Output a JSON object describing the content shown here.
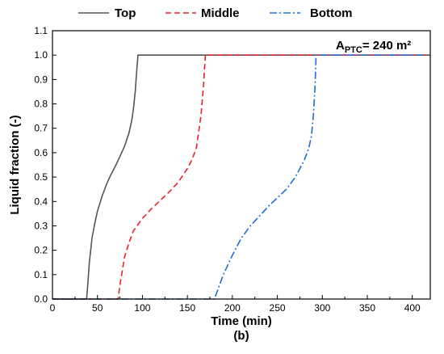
{
  "chart_data": {
    "type": "line",
    "xlabel": "Time (min)",
    "ylabel": "Liquid fraction (-)",
    "caption": "(b)",
    "xlim": [
      0,
      420
    ],
    "ylim": [
      0,
      1.1
    ],
    "xticks": [
      0,
      50,
      100,
      150,
      200,
      250,
      300,
      350,
      400
    ],
    "yticks": [
      0.0,
      0.1,
      0.2,
      0.3,
      0.4,
      0.5,
      0.6,
      0.7,
      0.8,
      0.9,
      1.0,
      1.1
    ],
    "xtick_labels": [
      "0",
      "50",
      "100",
      "150",
      "200",
      "250",
      "300",
      "350",
      "400"
    ],
    "ytick_labels": [
      "0.0",
      "0.1",
      "0.2",
      "0.3",
      "0.4",
      "0.5",
      "0.6",
      "0.7",
      "0.8",
      "0.9",
      "1.0",
      "1.1"
    ],
    "legend_position": "top",
    "grid": false,
    "annotation": {
      "main": "A",
      "subscript": "PTC",
      "suffix": "= 240 m²"
    },
    "series": [
      {
        "name": "Top",
        "color": "#555555",
        "dash": "solid",
        "x": [
          0,
          38,
          39,
          41,
          44,
          47,
          50,
          55,
          60,
          65,
          70,
          75,
          80,
          85,
          88,
          90,
          92,
          93,
          94,
          95,
          420
        ],
        "y": [
          0,
          0,
          0.05,
          0.15,
          0.25,
          0.31,
          0.36,
          0.42,
          0.47,
          0.51,
          0.545,
          0.585,
          0.625,
          0.68,
          0.73,
          0.78,
          0.85,
          0.9,
          0.95,
          1.0,
          1.0
        ]
      },
      {
        "name": "Middle",
        "color": "#e8222a",
        "dash": "dashed",
        "x": [
          0,
          73,
          74,
          76,
          80,
          85,
          90,
          95,
          100,
          110,
          120,
          130,
          140,
          150,
          155,
          160,
          165,
          168,
          170,
          420
        ],
        "y": [
          0,
          0,
          0.03,
          0.08,
          0.17,
          0.23,
          0.28,
          0.305,
          0.33,
          0.37,
          0.405,
          0.44,
          0.48,
          0.535,
          0.57,
          0.62,
          0.75,
          0.88,
          1.0,
          1.0
        ]
      },
      {
        "name": "Bottom",
        "color": "#1f6ed4",
        "dash": "dashdot",
        "x": [
          0,
          180,
          185,
          190,
          200,
          210,
          220,
          230,
          240,
          250,
          260,
          270,
          280,
          285,
          288,
          290,
          292,
          293,
          420
        ],
        "y": [
          0,
          0,
          0.05,
          0.1,
          0.18,
          0.25,
          0.3,
          0.34,
          0.38,
          0.415,
          0.45,
          0.5,
          0.57,
          0.62,
          0.67,
          0.75,
          0.88,
          1.0,
          1.0
        ]
      }
    ]
  }
}
